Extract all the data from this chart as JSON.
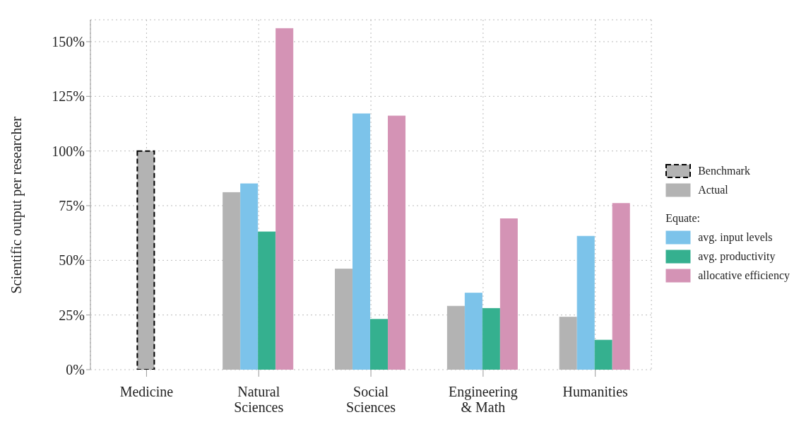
{
  "chart_data": {
    "type": "bar",
    "ylabel": "Scientific output per researcher",
    "categories": [
      "Medicine",
      "Natural\nSciences",
      "Social\nSciences",
      "Engineering\n& Math",
      "Humanities"
    ],
    "series": [
      {
        "name": "Benchmark",
        "color": "#b3b3b3",
        "line_style": "dashed",
        "values": [
          100,
          null,
          null,
          null,
          null
        ]
      },
      {
        "name": "Actual",
        "color": "#b3b3b3",
        "values": [
          null,
          81,
          46,
          29,
          24
        ]
      },
      {
        "name": "avg. input levels",
        "color": "#7cc3ea",
        "values": [
          null,
          85,
          117,
          35,
          61
        ]
      },
      {
        "name": "avg. productivity",
        "color": "#35b08f",
        "values": [
          null,
          63,
          23,
          28,
          13.5
        ]
      },
      {
        "name": "allocative efficiency",
        "color": "#d493b5",
        "values": [
          null,
          156,
          116,
          69,
          76
        ]
      }
    ],
    "legend_title": "Equate:",
    "legend": "right",
    "grid": true,
    "ylim": [
      0,
      160
    ],
    "yticks": [
      {
        "value": 0,
        "label": "0%"
      },
      {
        "value": 25,
        "label": "25%"
      },
      {
        "value": 50,
        "label": "50%"
      },
      {
        "value": 75,
        "label": "75%"
      },
      {
        "value": 100,
        "label": "100%"
      },
      {
        "value": 125,
        "label": "125%"
      },
      {
        "value": 150,
        "label": "150%"
      }
    ]
  }
}
